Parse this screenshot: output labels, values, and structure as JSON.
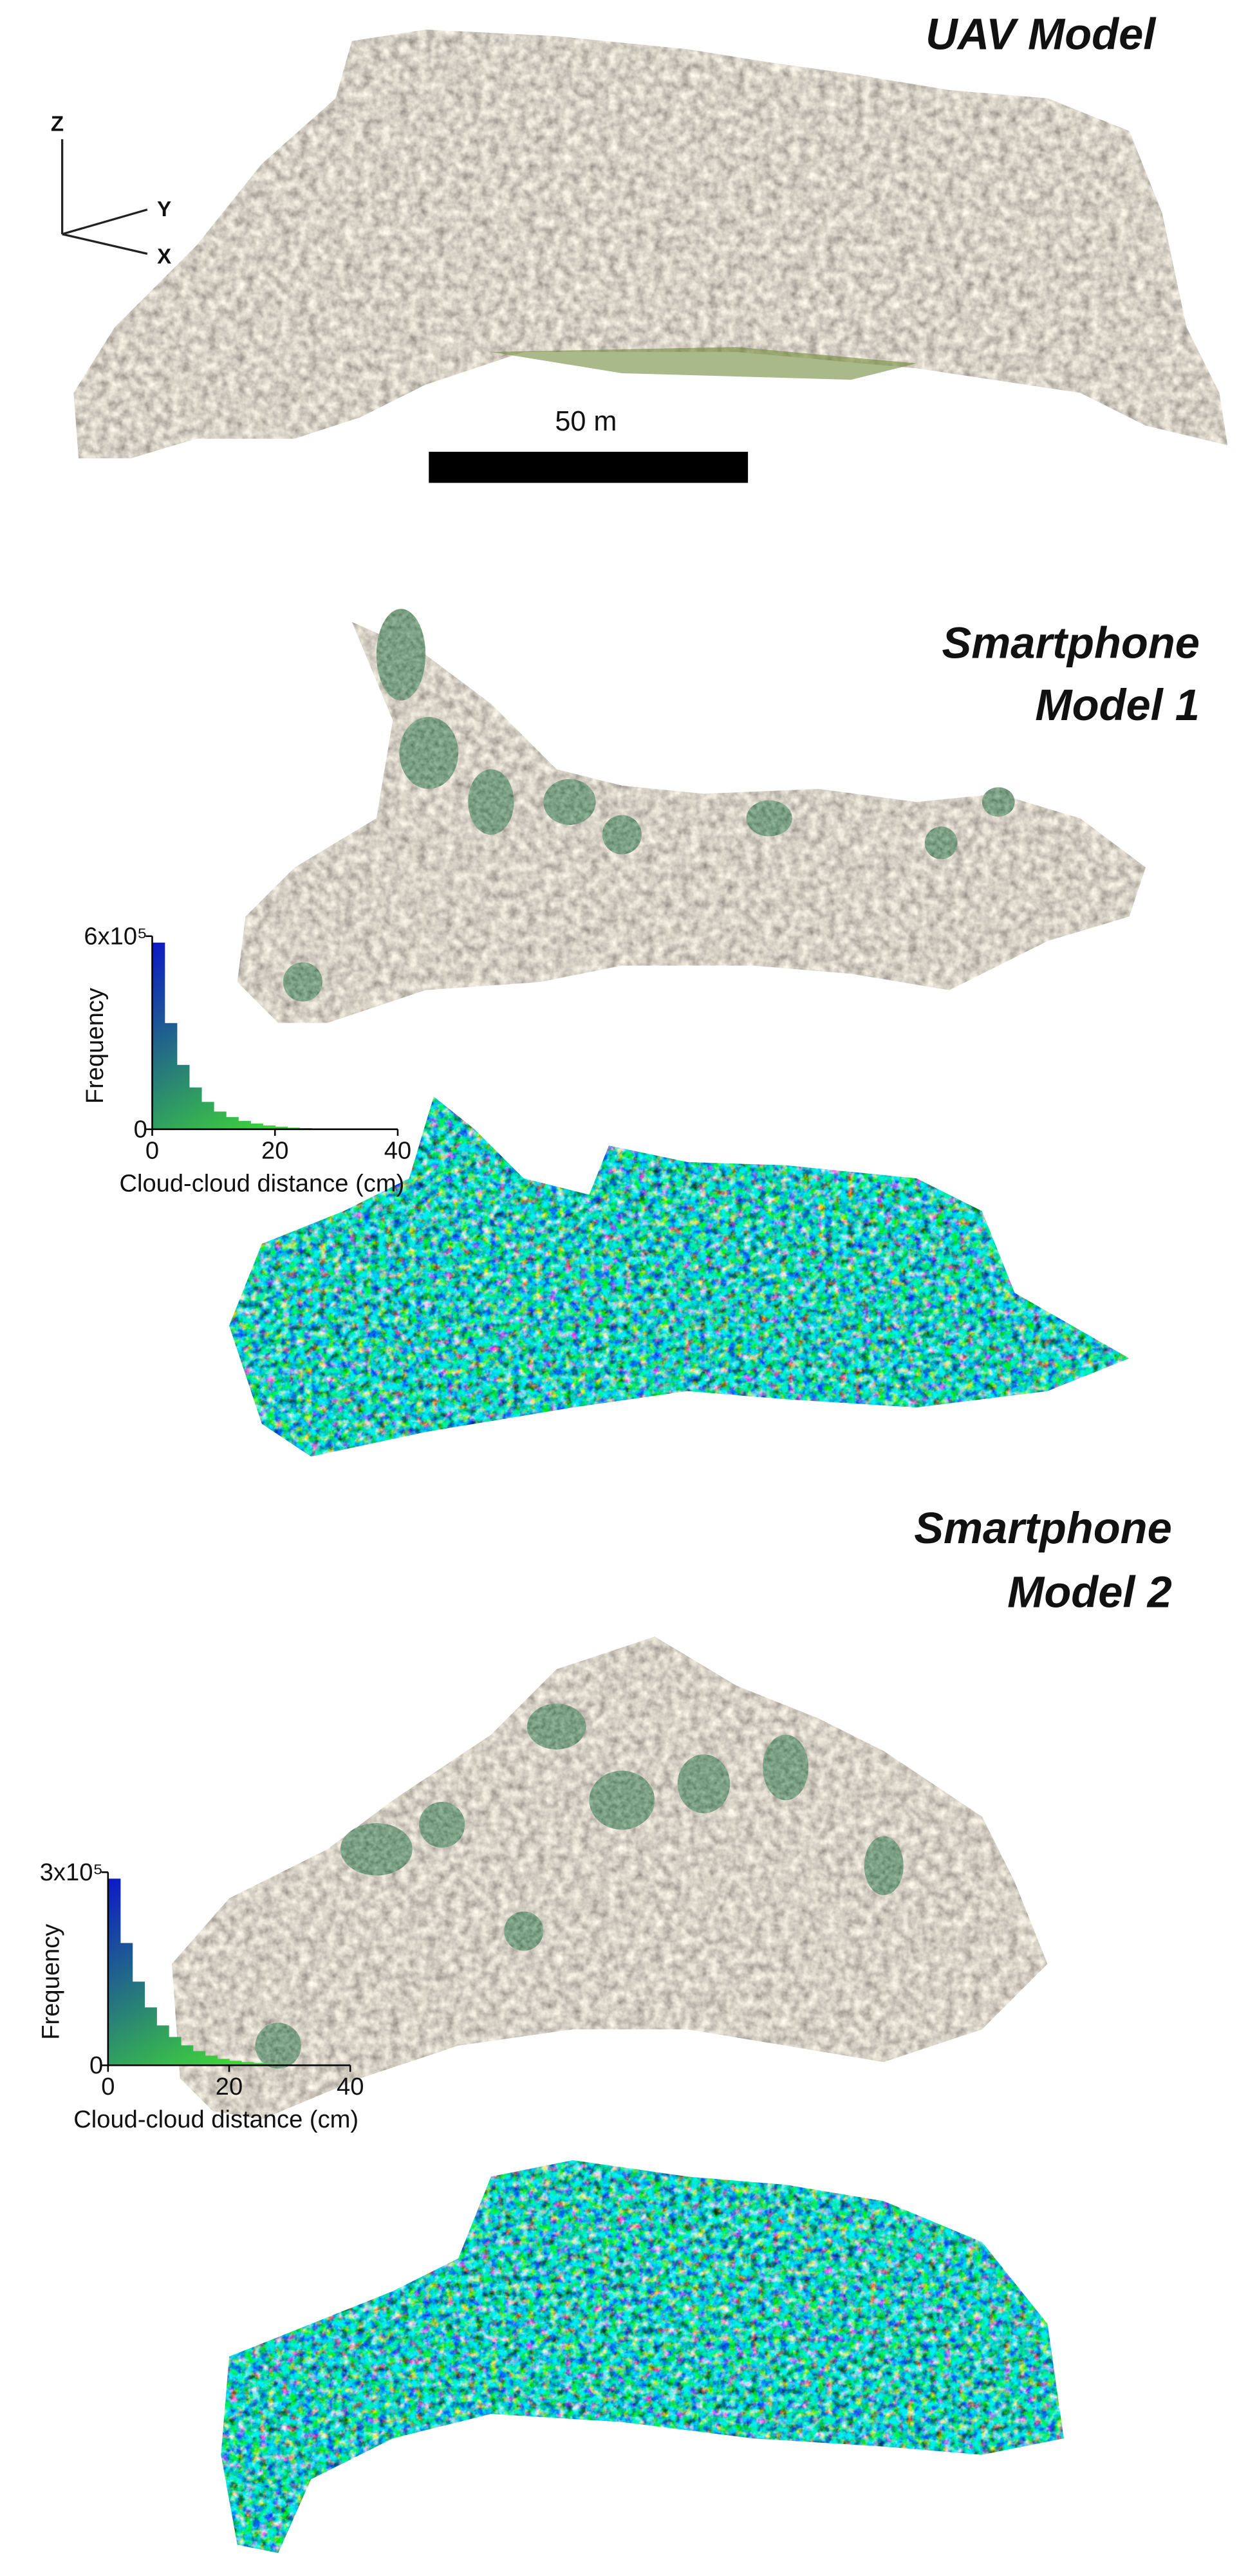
{
  "figure": {
    "uav_title": "UAV Model",
    "axes": {
      "z": "Z",
      "y": "Y",
      "x": "X"
    },
    "scale_bar": "50 m",
    "model1_title": [
      "Smartphone",
      "Model 1"
    ],
    "model2_title": [
      "Smartphone",
      "Model 2"
    ]
  },
  "chart_data": [
    {
      "type": "histogram",
      "bins": [
        0,
        2,
        4,
        6,
        8,
        10,
        12,
        14,
        16,
        18,
        20,
        22,
        24,
        26,
        28,
        30,
        32,
        34,
        36,
        38,
        40
      ],
      "counts": [
        580000,
        330000,
        200000,
        130000,
        85000,
        55000,
        38000,
        26000,
        18000,
        12000,
        8000,
        5000,
        3500,
        2000,
        1500,
        1000,
        700,
        500,
        300,
        200
      ],
      "xlabel": "Cloud-cloud distance (cm)",
      "ylabel": "Frequency",
      "xlim": [
        0,
        40
      ],
      "ylim": [
        0,
        600000
      ],
      "xticks": [
        0,
        20,
        40
      ],
      "yticks": [
        0,
        {
          "value": 600000,
          "label": "6x10⁵"
        }
      ],
      "colors": [
        "#0a14c8",
        "#3fd23a"
      ]
    },
    {
      "type": "histogram",
      "bins": [
        0,
        2,
        4,
        6,
        8,
        10,
        12,
        14,
        16,
        18,
        20,
        22,
        24,
        26,
        28,
        30,
        32,
        34,
        36,
        38,
        40
      ],
      "counts": [
        290000,
        190000,
        130000,
        90000,
        62000,
        44000,
        31000,
        22000,
        15000,
        10000,
        7000,
        5000,
        3500,
        2500,
        1500,
        1000,
        700,
        500,
        300,
        200
      ],
      "xlabel": "Cloud-cloud distance (cm)",
      "ylabel": "Frequency",
      "xlim": [
        0,
        40
      ],
      "ylim": [
        0,
        300000
      ],
      "xticks": [
        0,
        20,
        40
      ],
      "yticks": [
        0,
        {
          "value": 300000,
          "label": "3x10⁵"
        }
      ],
      "colors": [
        "#0a14c8",
        "#3fd23a"
      ]
    }
  ]
}
